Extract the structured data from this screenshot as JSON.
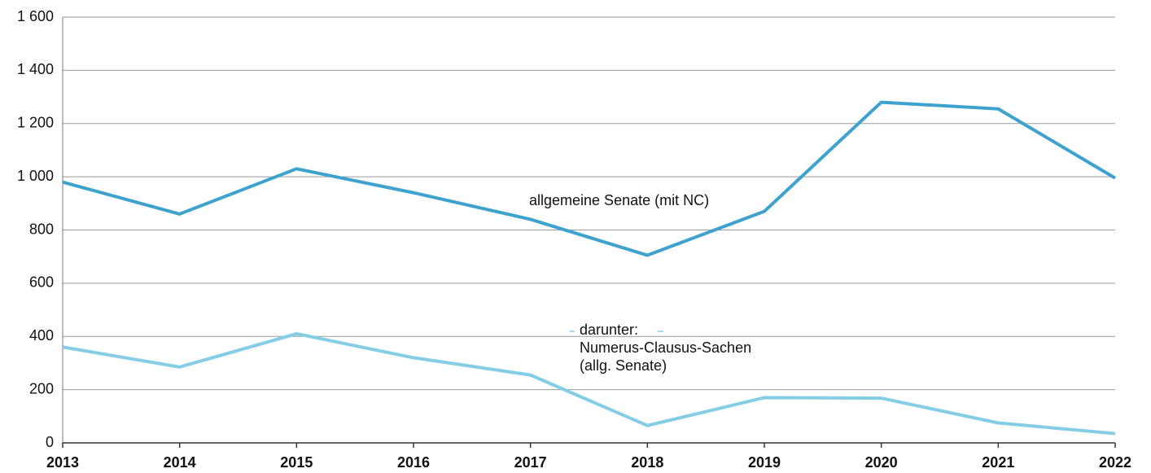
{
  "chart_data": {
    "type": "line",
    "categories": [
      "2013",
      "2014",
      "2015",
      "2016",
      "2017",
      "2018",
      "2019",
      "2020",
      "2021",
      "2022"
    ],
    "series": [
      {
        "label_lines": [
          "allgemeine Senate (mit NC)"
        ],
        "color": "#3ea2cf",
        "values": [
          980,
          860,
          1030,
          940,
          840,
          705,
          870,
          1280,
          1255,
          995
        ]
      },
      {
        "label_lines": [
          "darunter:",
          "Numerus-Clausus-Sachen",
          "(allg. Senate)"
        ],
        "color": "#84cde7",
        "values": [
          360,
          285,
          410,
          320,
          255,
          65,
          170,
          168,
          75,
          35
        ]
      }
    ],
    "ylim": [
      0,
      1600
    ],
    "yticks": [
      0,
      200,
      400,
      600,
      800,
      {
        "value": 1000,
        "label": "1 000"
      },
      {
        "value": 1200,
        "label": "1 200"
      },
      {
        "value": 1400,
        "label": "1 400"
      },
      {
        "value": 1600,
        "label": "1 600"
      }
    ],
    "grid": true
  }
}
